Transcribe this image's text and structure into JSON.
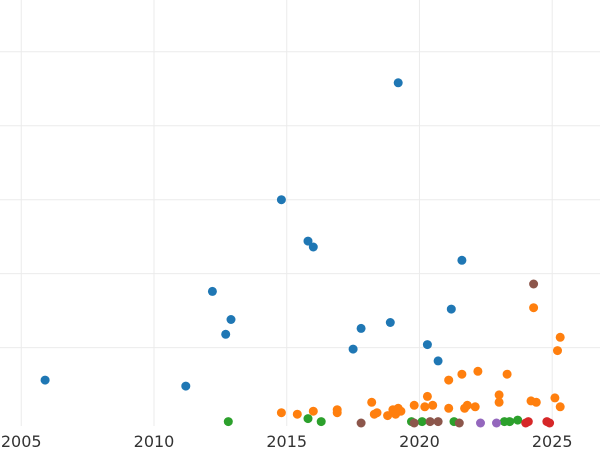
{
  "chart_data": {
    "type": "scatter",
    "title": "",
    "xlabel": "",
    "ylabel": "",
    "xlim": [
      2004.2,
      2026.8
    ],
    "ylim": [
      -0.3,
      28.5
    ],
    "grid": true,
    "grid_color": "#ebebeb",
    "x_ticks": [
      2005,
      2010,
      2015,
      2020,
      2025
    ],
    "x_tick_labels": [
      "2005",
      "2010",
      "2015",
      "2020",
      "2025"
    ],
    "y_ticks": [
      5,
      10,
      15,
      20,
      25
    ],
    "series": [
      {
        "color": "#1f77b4",
        "points": [
          [
            2005.9,
            2.8
          ],
          [
            2011.2,
            2.4
          ],
          [
            2012.2,
            8.8
          ],
          [
            2012.7,
            5.9
          ],
          [
            2012.9,
            6.9
          ],
          [
            2014.8,
            15.0
          ],
          [
            2015.8,
            12.2
          ],
          [
            2016.0,
            11.8
          ],
          [
            2017.5,
            4.9
          ],
          [
            2017.8,
            6.3
          ],
          [
            2018.9,
            6.7
          ],
          [
            2019.2,
            22.9
          ],
          [
            2020.3,
            5.2
          ],
          [
            2020.7,
            4.1
          ],
          [
            2021.2,
            7.6
          ],
          [
            2021.6,
            10.9
          ]
        ]
      },
      {
        "color": "#ff7f0e",
        "points": [
          [
            2014.8,
            0.6
          ],
          [
            2015.4,
            0.5
          ],
          [
            2016.0,
            0.7
          ],
          [
            2016.9,
            0.8
          ],
          [
            2016.9,
            0.6
          ],
          [
            2018.2,
            1.3
          ],
          [
            2018.3,
            0.5
          ],
          [
            2018.4,
            0.6
          ],
          [
            2018.8,
            0.4
          ],
          [
            2019.0,
            0.8
          ],
          [
            2019.1,
            0.5
          ],
          [
            2019.2,
            0.9
          ],
          [
            2019.3,
            0.7
          ],
          [
            2019.8,
            1.1
          ],
          [
            2020.2,
            1.0
          ],
          [
            2020.3,
            1.7
          ],
          [
            2020.5,
            1.1
          ],
          [
            2021.1,
            0.9
          ],
          [
            2021.1,
            2.8
          ],
          [
            2021.6,
            3.2
          ],
          [
            2021.7,
            0.9
          ],
          [
            2021.8,
            1.1
          ],
          [
            2022.1,
            1.0
          ],
          [
            2022.2,
            3.4
          ],
          [
            2023.0,
            1.8
          ],
          [
            2023.0,
            1.3
          ],
          [
            2023.3,
            3.2
          ],
          [
            2024.2,
            1.4
          ],
          [
            2024.3,
            7.7
          ],
          [
            2024.4,
            1.3
          ],
          [
            2025.1,
            1.6
          ],
          [
            2025.2,
            4.8
          ],
          [
            2025.3,
            5.7
          ],
          [
            2025.3,
            1.0
          ]
        ]
      },
      {
        "color": "#2ca02c",
        "points": [
          [
            2012.8,
            0.0
          ],
          [
            2015.8,
            0.2
          ],
          [
            2016.3,
            0.0
          ],
          [
            2019.7,
            0.0
          ],
          [
            2020.1,
            0.0
          ],
          [
            2021.3,
            0.0
          ],
          [
            2023.2,
            0.0
          ],
          [
            2023.4,
            0.0
          ],
          [
            2023.7,
            0.1
          ]
        ]
      },
      {
        "color": "#d62728",
        "points": [
          [
            2024.0,
            -0.1
          ],
          [
            2024.1,
            0.0
          ],
          [
            2024.8,
            0.0
          ],
          [
            2024.9,
            -0.1
          ]
        ]
      },
      {
        "color": "#9467bd",
        "points": [
          [
            2022.3,
            -0.1
          ],
          [
            2022.9,
            -0.1
          ]
        ]
      },
      {
        "color": "#8c564b",
        "points": [
          [
            2017.8,
            -0.1
          ],
          [
            2019.8,
            -0.1
          ],
          [
            2020.4,
            0.0
          ],
          [
            2020.7,
            0.0
          ],
          [
            2021.5,
            -0.1
          ],
          [
            2024.3,
            9.3
          ]
        ]
      }
    ]
  }
}
